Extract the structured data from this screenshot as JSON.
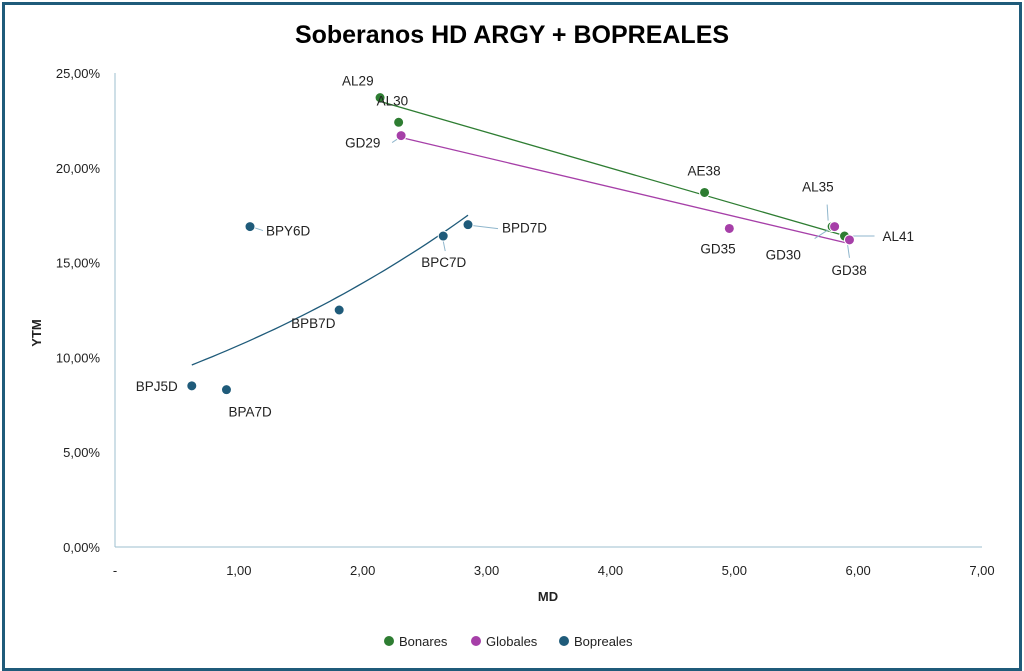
{
  "chart_data": {
    "type": "scatter",
    "title": "Soberanos HD ARGY + BOPREALES",
    "xlabel": "MD",
    "ylabel": "YTM",
    "xlim": [
      0,
      7
    ],
    "ylim": [
      0,
      25
    ],
    "x_ticks": [
      "-",
      "1,00",
      "2,00",
      "3,00",
      "4,00",
      "5,00",
      "6,00",
      "7,00"
    ],
    "y_ticks": [
      "0,00%",
      "5,00%",
      "10,00%",
      "15,00%",
      "20,00%",
      "25,00%"
    ],
    "legend_position": "bottom",
    "grid": false,
    "series": [
      {
        "name": "Bonares",
        "color": "#2e7d32",
        "points": [
          {
            "label": "AL29",
            "x": 2.14,
            "y": 23.7
          },
          {
            "label": "AL30",
            "x": 2.29,
            "y": 22.4
          },
          {
            "label": "AE38",
            "x": 4.76,
            "y": 18.7
          },
          {
            "label": "AL35",
            "x": 5.79,
            "y": 16.9
          },
          {
            "label": "AL41",
            "x": 5.89,
            "y": 16.4
          }
        ],
        "trendline": {
          "type": "linear",
          "x_start": 2.14,
          "y_start": 23.5,
          "x_end": 5.9,
          "y_end": 16.4
        }
      },
      {
        "name": "Globales",
        "color": "#a63fa8",
        "points": [
          {
            "label": "GD29",
            "x": 2.31,
            "y": 21.7
          },
          {
            "label": "GD35",
            "x": 4.96,
            "y": 16.8
          },
          {
            "label": "GD30",
            "x": 5.81,
            "y": 16.9
          },
          {
            "label": "GD38",
            "x": 5.93,
            "y": 16.2
          }
        ],
        "trendline": {
          "type": "linear",
          "x_start": 2.31,
          "y_start": 21.6,
          "x_end": 5.93,
          "y_end": 16.0
        }
      },
      {
        "name": "Bopreales",
        "color": "#1f5b7a",
        "points": [
          {
            "label": "BPY6D",
            "x": 1.09,
            "y": 16.9
          },
          {
            "label": "BPD7D",
            "x": 2.85,
            "y": 17.0
          },
          {
            "label": "BPC7D",
            "x": 2.65,
            "y": 16.4
          },
          {
            "label": "BPB7D",
            "x": 1.81,
            "y": 12.5
          },
          {
            "label": "BPJ5D",
            "x": 0.62,
            "y": 8.5
          },
          {
            "label": "BPA7D",
            "x": 0.9,
            "y": 8.3
          }
        ],
        "trendline": {
          "type": "exponential",
          "x_start": 0.62,
          "y_start": 9.6,
          "x_end": 2.85,
          "y_end": 17.5
        }
      }
    ]
  }
}
